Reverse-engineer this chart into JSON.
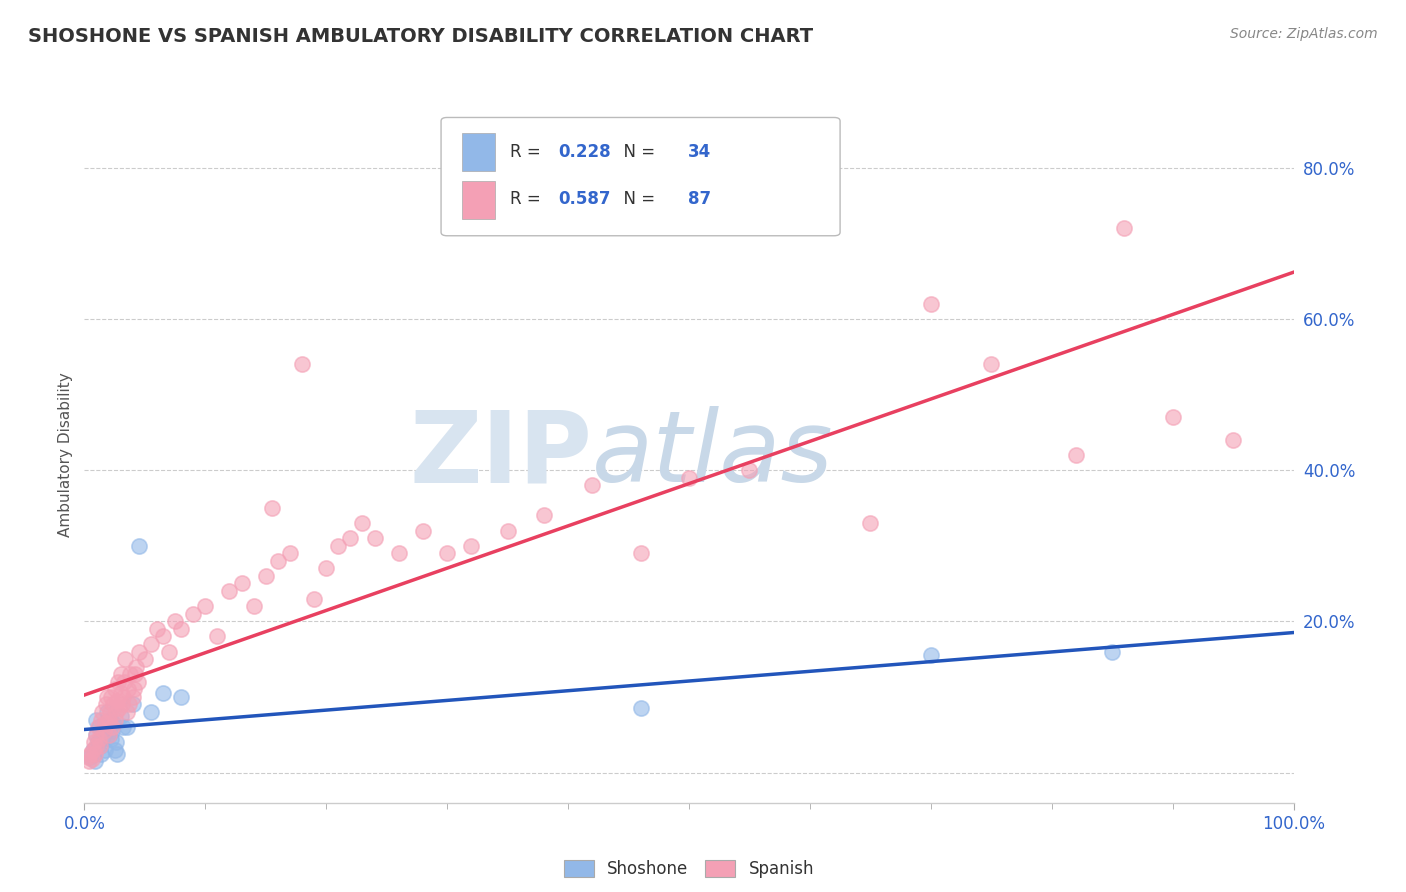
{
  "title": "SHOSHONE VS SPANISH AMBULATORY DISABILITY CORRELATION CHART",
  "source": "Source: ZipAtlas.com",
  "ylabel": "Ambulatory Disability",
  "shoshone_R": 0.228,
  "shoshone_N": 34,
  "spanish_R": 0.587,
  "spanish_N": 87,
  "shoshone_color": "#92b8e8",
  "spanish_color": "#f4a0b5",
  "shoshone_line_color": "#2255bb",
  "spanish_line_color": "#e84060",
  "title_color": "#333333",
  "legend_value_color": "#3366cc",
  "xlim": [
    0.0,
    1.0
  ],
  "ylim": [
    -0.04,
    0.88
  ],
  "x_tick_positions": [
    0.0,
    1.0
  ],
  "x_tick_labels": [
    "0.0%",
    "100.0%"
  ],
  "y_tick_positions": [
    0.0,
    0.2,
    0.4,
    0.6,
    0.8
  ],
  "y_tick_labels": [
    "",
    "20.0%",
    "40.0%",
    "60.0%",
    "80.0%"
  ],
  "shoshone_x": [
    0.005,
    0.007,
    0.008,
    0.009,
    0.01,
    0.01,
    0.011,
    0.012,
    0.013,
    0.014,
    0.015,
    0.016,
    0.017,
    0.018,
    0.019,
    0.02,
    0.021,
    0.022,
    0.023,
    0.024,
    0.025,
    0.026,
    0.027,
    0.03,
    0.032,
    0.035,
    0.04,
    0.045,
    0.055,
    0.065,
    0.08,
    0.46,
    0.7,
    0.85
  ],
  "shoshone_y": [
    0.02,
    0.03,
    0.025,
    0.015,
    0.05,
    0.07,
    0.04,
    0.06,
    0.035,
    0.025,
    0.045,
    0.055,
    0.03,
    0.06,
    0.08,
    0.05,
    0.07,
    0.045,
    0.055,
    0.065,
    0.03,
    0.04,
    0.025,
    0.075,
    0.06,
    0.06,
    0.09,
    0.3,
    0.08,
    0.105,
    0.1,
    0.085,
    0.155,
    0.16
  ],
  "spanish_x": [
    0.003,
    0.004,
    0.005,
    0.006,
    0.007,
    0.008,
    0.009,
    0.01,
    0.01,
    0.011,
    0.012,
    0.013,
    0.014,
    0.015,
    0.016,
    0.017,
    0.018,
    0.019,
    0.02,
    0.02,
    0.021,
    0.022,
    0.023,
    0.024,
    0.025,
    0.025,
    0.026,
    0.027,
    0.028,
    0.029,
    0.03,
    0.03,
    0.031,
    0.032,
    0.033,
    0.034,
    0.035,
    0.036,
    0.037,
    0.038,
    0.04,
    0.041,
    0.042,
    0.043,
    0.044,
    0.045,
    0.05,
    0.055,
    0.06,
    0.065,
    0.07,
    0.075,
    0.08,
    0.09,
    0.1,
    0.11,
    0.12,
    0.13,
    0.14,
    0.15,
    0.155,
    0.16,
    0.17,
    0.18,
    0.19,
    0.2,
    0.21,
    0.22,
    0.23,
    0.24,
    0.26,
    0.28,
    0.3,
    0.32,
    0.35,
    0.38,
    0.42,
    0.46,
    0.5,
    0.55,
    0.65,
    0.7,
    0.75,
    0.82,
    0.86,
    0.9,
    0.95
  ],
  "spanish_y": [
    0.02,
    0.015,
    0.025,
    0.018,
    0.03,
    0.04,
    0.025,
    0.035,
    0.05,
    0.06,
    0.045,
    0.035,
    0.07,
    0.08,
    0.055,
    0.065,
    0.09,
    0.1,
    0.07,
    0.05,
    0.08,
    0.1,
    0.06,
    0.09,
    0.11,
    0.07,
    0.08,
    0.095,
    0.12,
    0.085,
    0.105,
    0.13,
    0.09,
    0.1,
    0.12,
    0.15,
    0.08,
    0.11,
    0.09,
    0.13,
    0.1,
    0.11,
    0.13,
    0.14,
    0.12,
    0.16,
    0.15,
    0.17,
    0.19,
    0.18,
    0.16,
    0.2,
    0.19,
    0.21,
    0.22,
    0.18,
    0.24,
    0.25,
    0.22,
    0.26,
    0.35,
    0.28,
    0.29,
    0.54,
    0.23,
    0.27,
    0.3,
    0.31,
    0.33,
    0.31,
    0.29,
    0.32,
    0.29,
    0.3,
    0.32,
    0.34,
    0.38,
    0.29,
    0.39,
    0.4,
    0.33,
    0.62,
    0.54,
    0.42,
    0.72,
    0.47,
    0.44
  ]
}
